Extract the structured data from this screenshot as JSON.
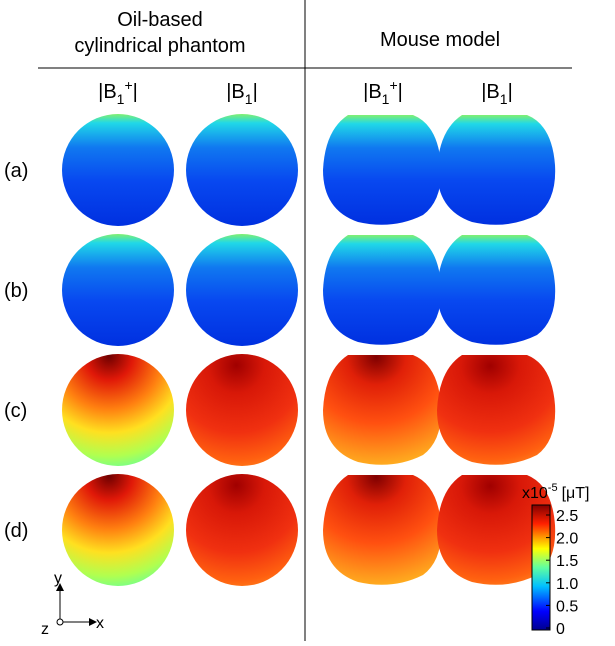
{
  "header": {
    "left_title": [
      "Oil-based",
      "cylindrical phantom"
    ],
    "right_title": "Mouse model"
  },
  "column_labels": [
    {
      "pre": "|B",
      "sub": "1",
      "sup": "+",
      "post": "|"
    },
    {
      "pre": "|B",
      "sub": "1",
      "post": "|"
    },
    {
      "pre": "|B",
      "sub": "1",
      "sup": "+",
      "post": "|"
    },
    {
      "pre": "|B",
      "sub": "1",
      "post": "|"
    }
  ],
  "row_labels": [
    "(a)",
    "(b)",
    "(c)",
    "(d)"
  ],
  "colorbar": {
    "scale_base": "x10",
    "scale_exp": "-5",
    "unit": "[μT]",
    "ticks": [
      {
        "value": 0,
        "label": "0"
      },
      {
        "value": 0.5,
        "label": "0.5"
      },
      {
        "value": 1,
        "label": "1.0"
      },
      {
        "value": 1.5,
        "label": "1.5"
      },
      {
        "value": 2,
        "label": "2.0"
      },
      {
        "value": 2.5,
        "label": "2.5"
      }
    ]
  },
  "axes": {
    "y": "y",
    "z": "z",
    "x": "x"
  }
}
